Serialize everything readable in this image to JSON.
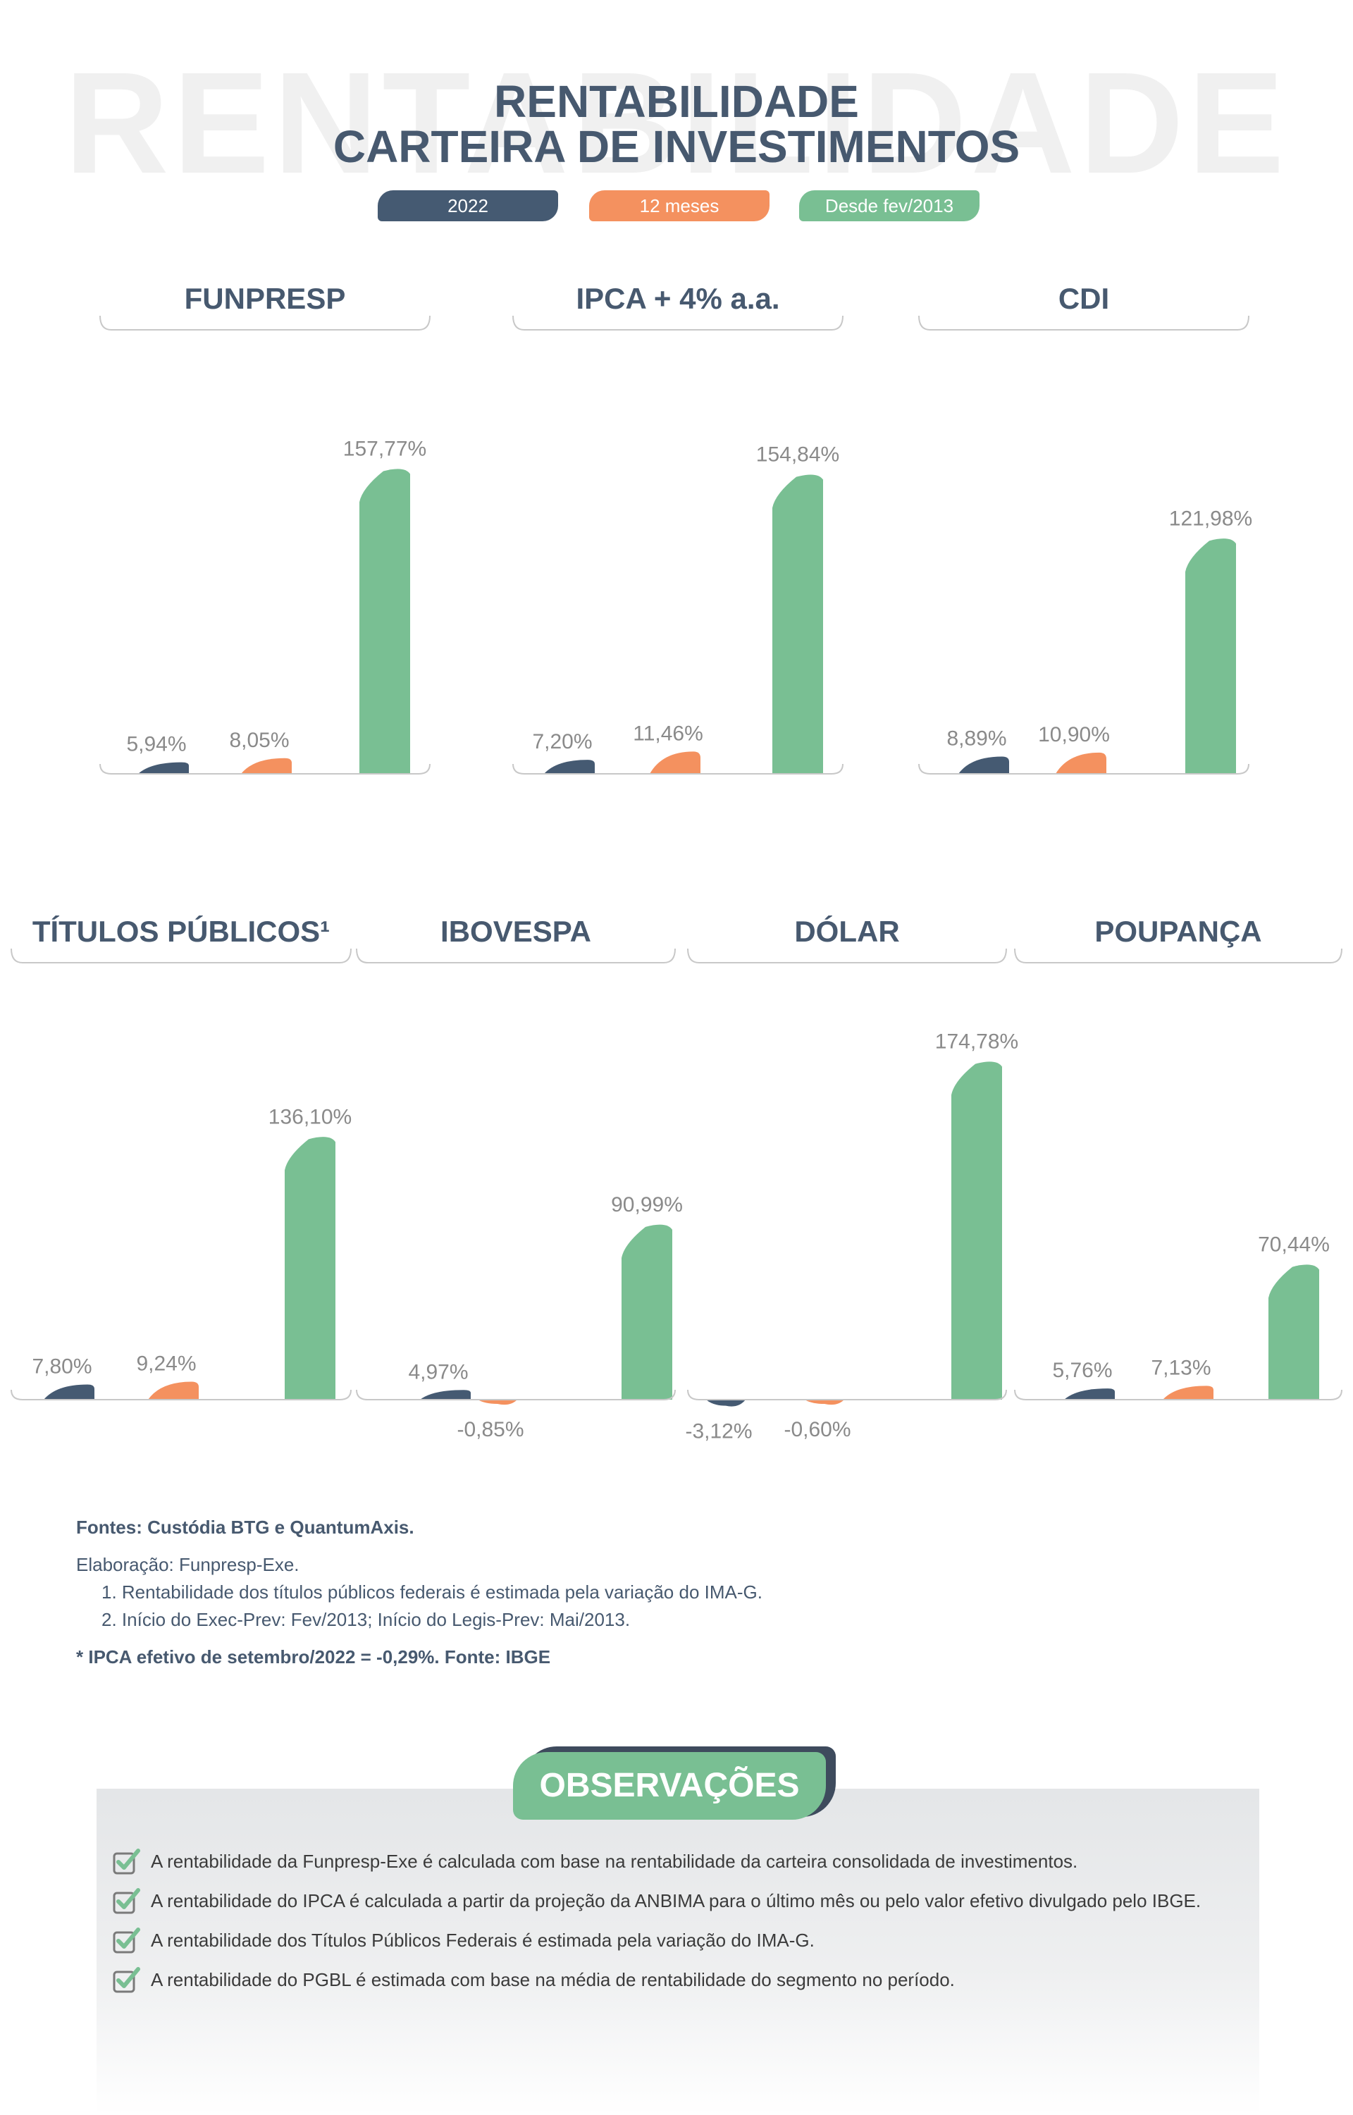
{
  "header": {
    "watermark": "RENTABILIDADE",
    "title_line1": "RENTABILIDADE",
    "title_line2": "CARTEIRA DE INVESTIMENTOS"
  },
  "legend": [
    {
      "label": "2022",
      "color": "#455a72"
    },
    {
      "label": "12 meses",
      "color": "#f4915f"
    },
    {
      "label": "Desde fev/2013",
      "color": "#79bf93"
    }
  ],
  "chart_data": [
    {
      "type": "bar",
      "title": "FUNPRESP",
      "categories": [
        "2022",
        "12 meses",
        "Desde fev/2013"
      ],
      "values": [
        5.94,
        8.05,
        157.77
      ],
      "labels": [
        "5,94%",
        "8,05%",
        "157,77%"
      ]
    },
    {
      "type": "bar",
      "title": "IPCA + 4% a.a.",
      "categories": [
        "2022",
        "12 meses",
        "Desde fev/2013"
      ],
      "values": [
        7.2,
        11.46,
        154.84
      ],
      "labels": [
        "7,20%",
        "11,46%",
        "154,84%"
      ]
    },
    {
      "type": "bar",
      "title": "CDI",
      "categories": [
        "2022",
        "12 meses",
        "Desde fev/2013"
      ],
      "values": [
        8.89,
        10.9,
        121.98
      ],
      "labels": [
        "8,89%",
        "10,90%",
        "121,98%"
      ]
    },
    {
      "type": "bar",
      "title": "TÍTULOS PÚBLICOS¹",
      "categories": [
        "2022",
        "12 meses",
        "Desde fev/2013"
      ],
      "values": [
        7.8,
        9.24,
        136.1
      ],
      "labels": [
        "7,80%",
        "9,24%",
        "136,10%"
      ]
    },
    {
      "type": "bar",
      "title": "IBOVESPA",
      "categories": [
        "2022",
        "12 meses",
        "Desde fev/2013"
      ],
      "values": [
        4.97,
        -0.85,
        90.99
      ],
      "labels": [
        "4,97%",
        "-0,85%",
        "90,99%"
      ]
    },
    {
      "type": "bar",
      "title": "DÓLAR",
      "categories": [
        "2022",
        "12 meses",
        "Desde fev/2013"
      ],
      "values": [
        -3.12,
        -0.6,
        174.78
      ],
      "labels": [
        "-3,12%",
        "-0,60%",
        "174,78%"
      ]
    },
    {
      "type": "bar",
      "title": "POUPANÇA",
      "categories": [
        "2022",
        "12 meses",
        "Desde fev/2013"
      ],
      "values": [
        5.76,
        7.13,
        70.44
      ],
      "labels": [
        "5,76%",
        "7,13%",
        "70,44%"
      ]
    }
  ],
  "notes": {
    "fontes_label": "Fontes:",
    "fontes_text": " Custódia BTG e QuantumAxis.",
    "elaboracao": "Elaboração: Funpresp-Exe.",
    "note1": "1. Rentabilidade dos títulos públicos federais é estimada pela variação do IMA-G.",
    "note2": "2. Início do Exec-Prev: Fev/2013; Início do Legis-Prev: Mai/2013.",
    "ipca_note": "* IPCA efetivo de setembro/2022 = -0,29%. Fonte: IBGE"
  },
  "observacoes": {
    "title": "OBSERVAÇÕES",
    "items": [
      "A rentabilidade da Funpresp-Exe é calculada com base na rentabilidade da carteira consolidada de investimentos.",
      "A rentabilidade do IPCA é calculada a partir da projeção da ANBIMA para o último mês ou pelo valor efetivo divulgado pelo IBGE.",
      "A rentabilidade dos Títulos Públicos Federais é estimada pela variação do IMA-G.",
      "A rentabilidade do PGBL é estimada com base na média de rentabilidade do segmento no período."
    ]
  },
  "colors": {
    "text_dark": "#47596f",
    "label_gray": "#8a8a8a",
    "axis_gray": "#c8c8c8",
    "check_green": "#79bf93"
  }
}
